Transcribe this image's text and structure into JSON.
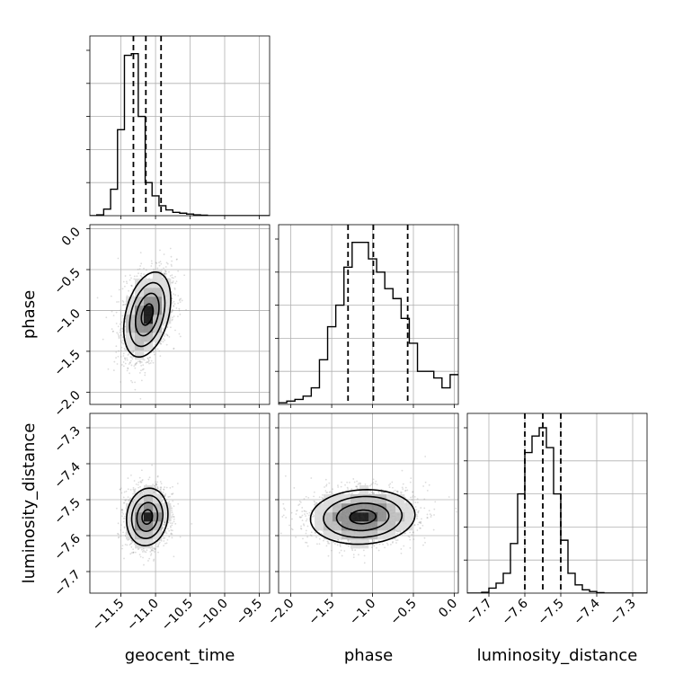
{
  "chart_data": {
    "type": "corner",
    "params": [
      "geocent_time",
      "phase",
      "luminosity_distance"
    ],
    "ranges": {
      "geocent_time": [
        -11.95,
        -9.35
      ],
      "phase": [
        -2.15,
        0.05
      ],
      "luminosity_distance": [
        -7.76,
        -7.26
      ]
    },
    "ticks": {
      "geocent_time": [
        -11.5,
        -11.0,
        -10.5,
        -10.0,
        -9.5
      ],
      "phase": [
        -2.0,
        -1.5,
        -1.0,
        -0.5,
        0.0
      ],
      "luminosity_distance": [
        -7.7,
        -7.6,
        -7.5,
        -7.4,
        -7.3
      ]
    },
    "tick_labels": {
      "geocent_time": [
        "−11.5",
        "−11.0",
        "−10.5",
        "−10.0",
        "−9.5"
      ],
      "phase": [
        "−2.0",
        "−1.5",
        "−1.0",
        "−0.5",
        "0.0"
      ],
      "luminosity_distance": [
        "−7.7",
        "−7.6",
        "−7.5",
        "−7.4",
        "−7.3"
      ]
    },
    "quantiles": {
      "geocent_time": [
        -11.32,
        -11.14,
        -10.92
      ],
      "phase": [
        -1.3,
        -0.99,
        -0.57
      ],
      "luminosity_distance": [
        -7.6,
        -7.55,
        -7.5
      ]
    },
    "histograms": {
      "geocent_time": {
        "edges": [
          -11.95,
          -11.85,
          -11.75,
          -11.65,
          -11.55,
          -11.45,
          -11.35,
          -11.25,
          -11.15,
          -11.05,
          -10.95,
          -10.85,
          -10.75,
          -10.65,
          -10.55,
          -10.45,
          -10.35,
          -10.25,
          -10.15,
          -10.05,
          -9.95,
          -9.85,
          -9.75,
          -9.65,
          -9.55,
          -9.45,
          -9.35
        ],
        "counts": [
          0,
          0.005,
          0.04,
          0.16,
          0.52,
          0.97,
          0.98,
          0.6,
          0.2,
          0.12,
          0.06,
          0.035,
          0.02,
          0.015,
          0.01,
          0.005,
          0.003,
          0,
          0,
          0,
          0,
          0,
          0,
          0,
          0,
          0
        ]
      },
      "phase": {
        "edges": [
          -2.15,
          -2.05,
          -1.95,
          -1.85,
          -1.75,
          -1.65,
          -1.55,
          -1.45,
          -1.35,
          -1.25,
          -1.15,
          -1.05,
          -0.95,
          -0.85,
          -0.75,
          -0.65,
          -0.55,
          -0.45,
          -0.35,
          -0.25,
          -0.15,
          -0.05,
          0.05
        ],
        "counts": [
          0.01,
          0.02,
          0.03,
          0.05,
          0.1,
          0.27,
          0.47,
          0.6,
          0.83,
          0.98,
          0.98,
          0.88,
          0.8,
          0.7,
          0.64,
          0.52,
          0.37,
          0.2,
          0.2,
          0.16,
          0.1,
          0.18
        ]
      },
      "luminosity_distance": {
        "edges": [
          -7.76,
          -7.74,
          -7.72,
          -7.7,
          -7.68,
          -7.66,
          -7.64,
          -7.62,
          -7.6,
          -7.58,
          -7.56,
          -7.54,
          -7.52,
          -7.5,
          -7.48,
          -7.46,
          -7.44,
          -7.42,
          -7.4,
          -7.38,
          -7.36,
          -7.34,
          -7.32,
          -7.3,
          -7.28,
          -7.26
        ],
        "counts": [
          0,
          0,
          0.005,
          0.03,
          0.06,
          0.12,
          0.3,
          0.6,
          0.85,
          0.95,
          1.0,
          0.88,
          0.6,
          0.32,
          0.12,
          0.05,
          0.02,
          0.01,
          0.003,
          0,
          0,
          0,
          0,
          0,
          0
        ]
      }
    },
    "joint": [
      {
        "x": "geocent_time",
        "y": "phase",
        "mean": [
          -11.12,
          -1.05
        ],
        "sd": [
          0.17,
          0.26
        ],
        "rho": 0.35
      },
      {
        "x": "geocent_time",
        "y": "luminosity_distance",
        "mean": [
          -11.12,
          -7.548
        ],
        "sd": [
          0.15,
          0.04
        ],
        "rho": 0.1
      },
      {
        "x": "phase",
        "y": "luminosity_distance",
        "mean": [
          -1.12,
          -7.548
        ],
        "sd": [
          0.32,
          0.038
        ],
        "rho": 0.08
      }
    ],
    "contour_levels_sigma": [
      0.5,
      1.0,
      1.5,
      2.0
    ],
    "grid": true
  },
  "layout_labels": {
    "xlabel_1": "geocent_time",
    "xlabel_2": "phase",
    "xlabel_3": "luminosity_distance",
    "ylabel_2": "phase",
    "ylabel_3": "luminosity_distance"
  }
}
